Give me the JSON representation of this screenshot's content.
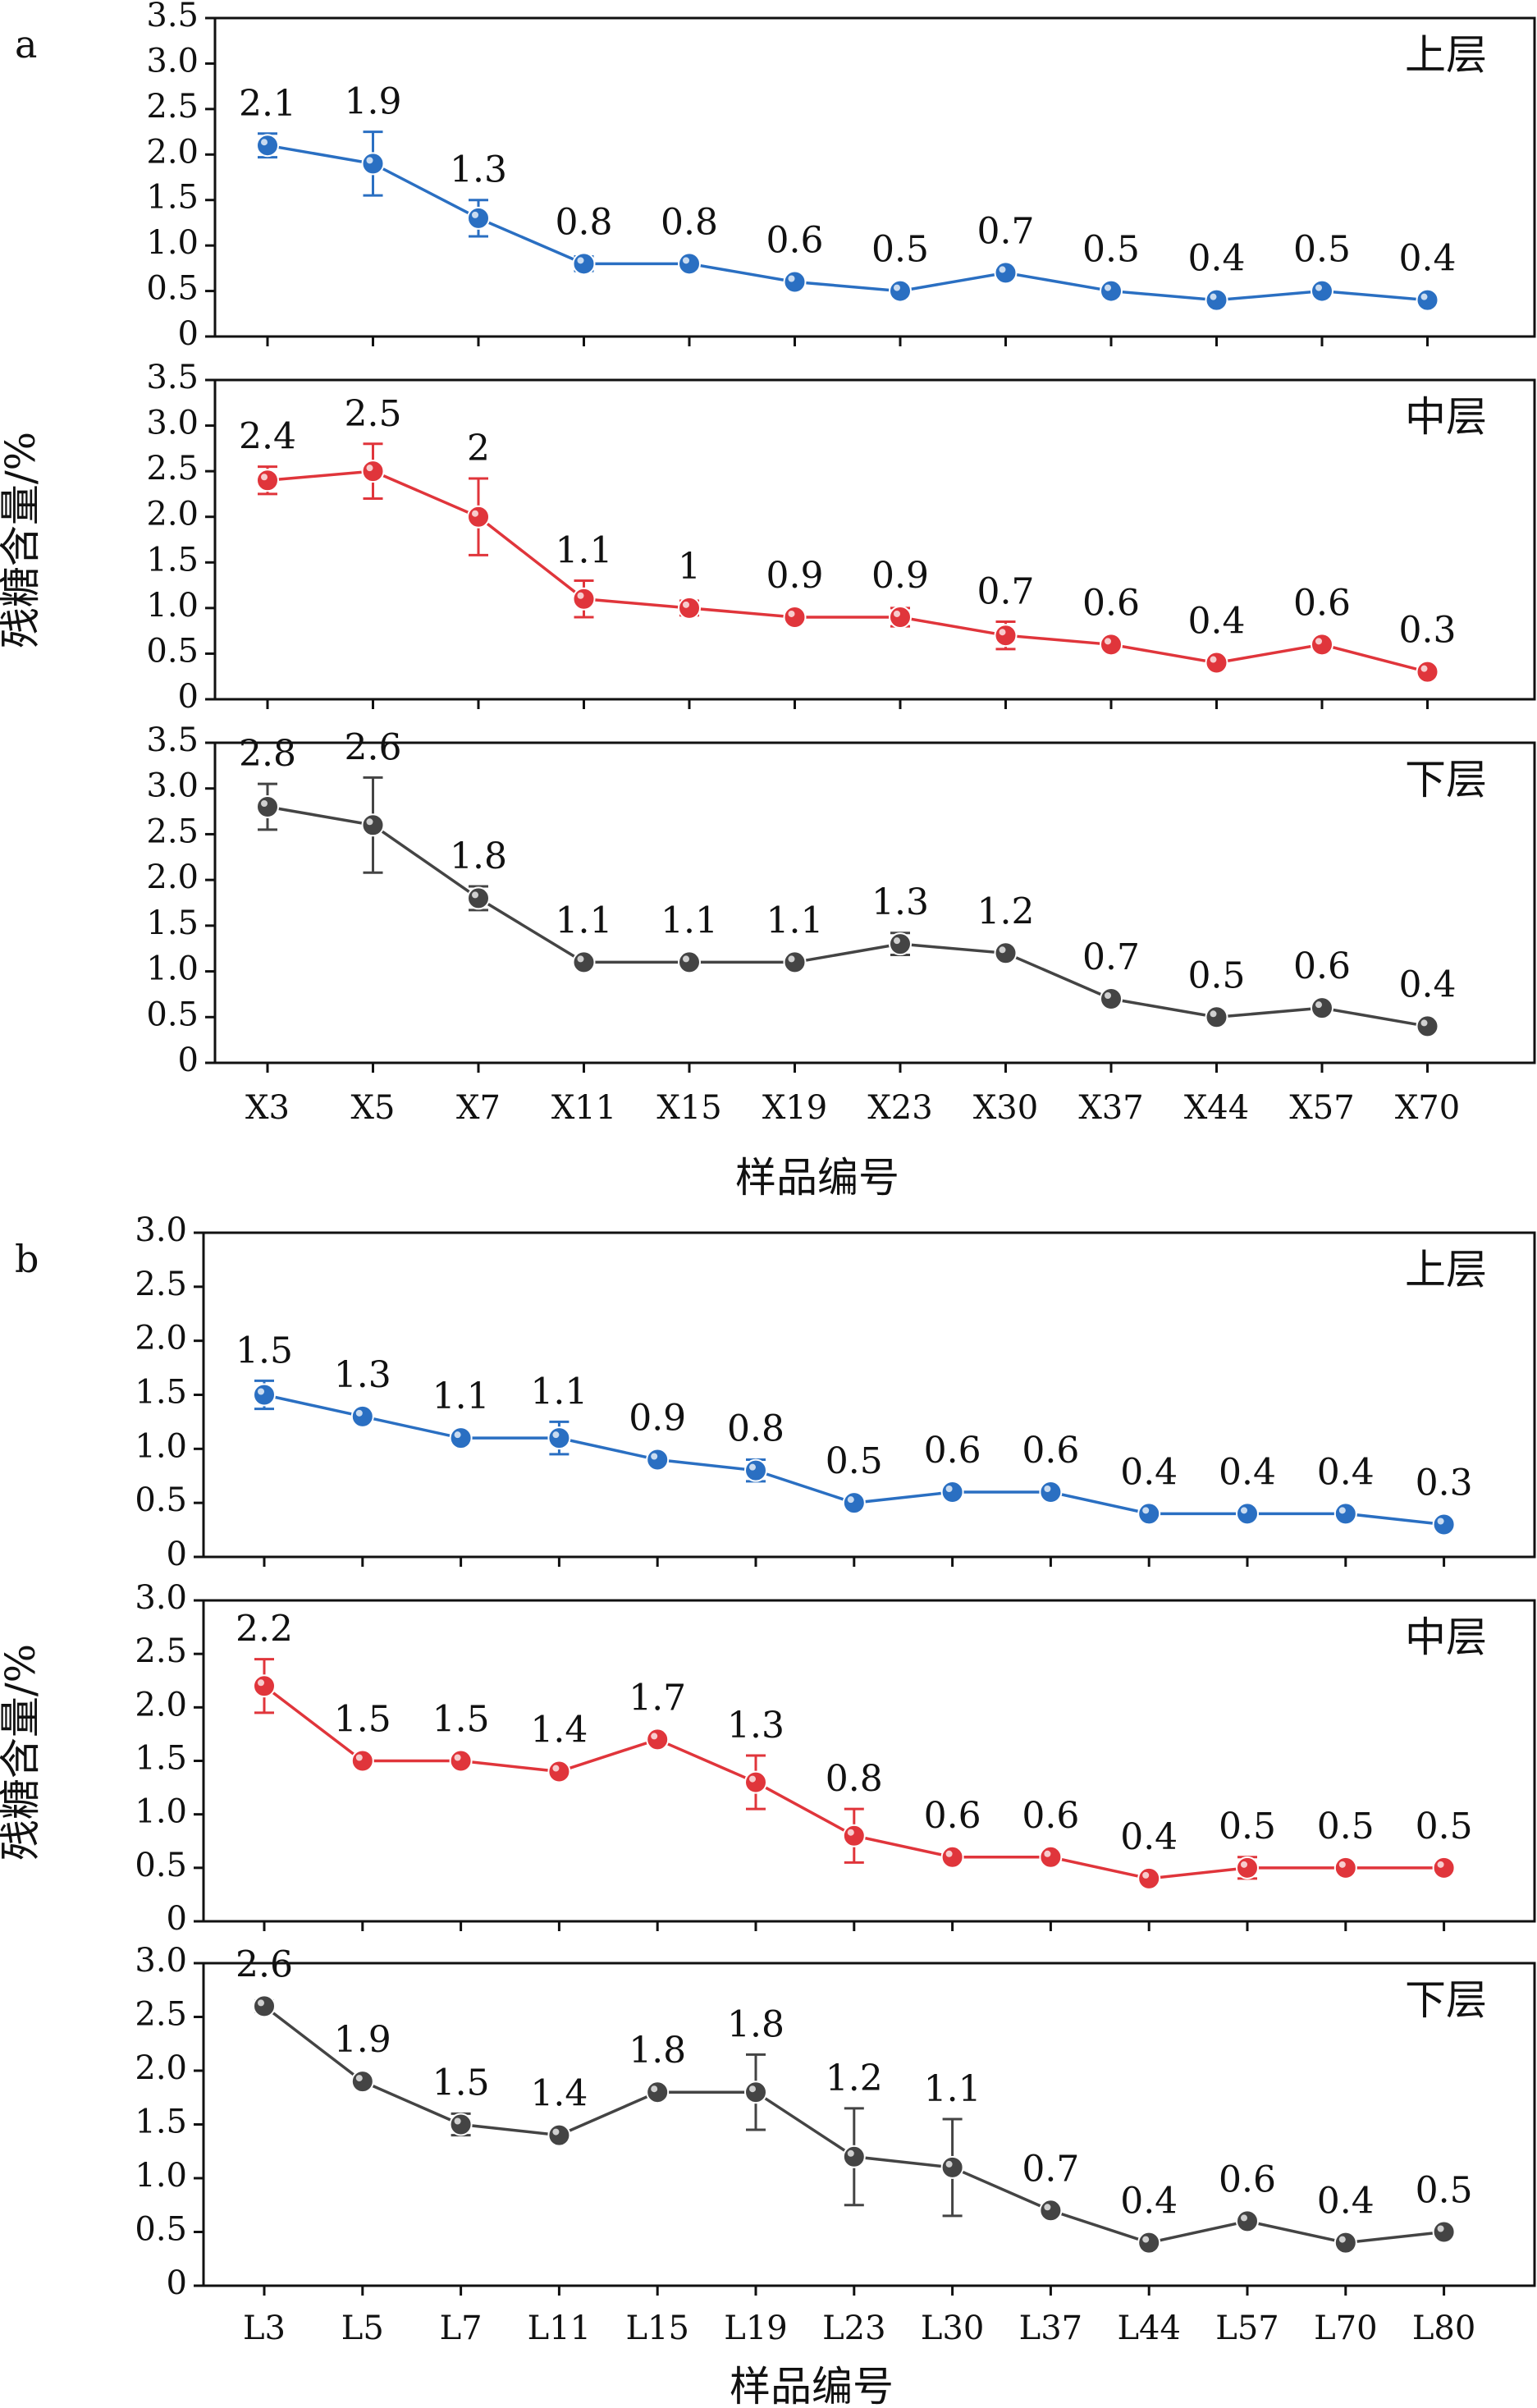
{
  "colors": {
    "upper": "#2a6fc2",
    "middle": "#e0353b",
    "lower": "#444444",
    "axis": "#111111"
  },
  "chart_data": [
    {
      "panel": "a",
      "type": "line",
      "xlabel": "样品编号",
      "ylabel": "残糖含量/%",
      "categories": [
        "X3",
        "X5",
        "X7",
        "X11",
        "X15",
        "X19",
        "X23",
        "X30",
        "X37",
        "X44",
        "X57",
        "X70"
      ],
      "ylim": [
        0,
        3.5
      ],
      "yticks": [
        "0",
        "0.5",
        "1.0",
        "1.5",
        "2.0",
        "2.5",
        "3.0",
        "3.5"
      ],
      "subplots": [
        {
          "layer": "上层",
          "color_key": "upper",
          "values": [
            2.1,
            1.9,
            1.3,
            0.8,
            0.8,
            0.6,
            0.5,
            0.7,
            0.5,
            0.4,
            0.5,
            0.4
          ],
          "labels": [
            "2.1",
            "1.9",
            "1.3",
            "0.8",
            "0.8",
            "0.6",
            "0.5",
            "0.7",
            "0.5",
            "0.4",
            "0.5",
            "0.4"
          ],
          "errors": [
            0.13,
            0.35,
            0.2,
            0.08,
            0.03,
            0.03,
            0.03,
            0.03,
            0.03,
            0.03,
            0.03,
            0.03
          ]
        },
        {
          "layer": "中层",
          "color_key": "middle",
          "values": [
            2.4,
            2.5,
            2.0,
            1.1,
            1.0,
            0.9,
            0.9,
            0.7,
            0.6,
            0.4,
            0.6,
            0.3
          ],
          "labels": [
            "2.4",
            "2.5",
            "2",
            "1.1",
            "1",
            "0.9",
            "0.9",
            "0.7",
            "0.6",
            "0.4",
            "0.6",
            "0.3"
          ],
          "errors": [
            0.15,
            0.3,
            0.42,
            0.2,
            0.08,
            0.03,
            0.1,
            0.15,
            0.03,
            0.03,
            0.03,
            0.03
          ]
        },
        {
          "layer": "下层",
          "color_key": "lower",
          "values": [
            2.8,
            2.6,
            1.8,
            1.1,
            1.1,
            1.1,
            1.3,
            1.2,
            0.7,
            0.5,
            0.6,
            0.4
          ],
          "labels": [
            "2.8",
            "2.6",
            "1.8",
            "1.1",
            "1.1",
            "1.1",
            "1.3",
            "1.2",
            "0.7",
            "0.5",
            "0.6",
            "0.4"
          ],
          "errors": [
            0.25,
            0.52,
            0.13,
            0.03,
            0.03,
            0.03,
            0.12,
            0.03,
            0.03,
            0.03,
            0.03,
            0.03
          ]
        }
      ]
    },
    {
      "panel": "b",
      "type": "line",
      "xlabel": "样品编号",
      "ylabel": "残糖含量/%",
      "categories": [
        "L3",
        "L5",
        "L7",
        "L11",
        "L15",
        "L19",
        "L23",
        "L30",
        "L37",
        "L44",
        "L57",
        "L70",
        "L80"
      ],
      "ylim": [
        0,
        3.0
      ],
      "yticks": [
        "0",
        "0.5",
        "1.0",
        "1.5",
        "2.0",
        "2.5",
        "3.0"
      ],
      "subplots": [
        {
          "layer": "上层",
          "color_key": "upper",
          "values": [
            1.5,
            1.3,
            1.1,
            1.1,
            0.9,
            0.8,
            0.5,
            0.6,
            0.6,
            0.4,
            0.4,
            0.4,
            0.3
          ],
          "labels": [
            "1.5",
            "1.3",
            "1.1",
            "1.1",
            "0.9",
            "0.8",
            "0.5",
            "0.6",
            "0.6",
            "0.4",
            "0.4",
            "0.4",
            "0.3"
          ],
          "errors": [
            0.13,
            0.03,
            0.03,
            0.15,
            0.03,
            0.1,
            0.03,
            0.03,
            0.03,
            0.03,
            0.03,
            0.03,
            0.03
          ]
        },
        {
          "layer": "中层",
          "color_key": "middle",
          "values": [
            2.2,
            1.5,
            1.5,
            1.4,
            1.7,
            1.3,
            0.8,
            0.6,
            0.6,
            0.4,
            0.5,
            0.5,
            0.5
          ],
          "labels": [
            "2.2",
            "1.5",
            "1.5",
            "1.4",
            "1.7",
            "1.3",
            "0.8",
            "0.6",
            "0.6",
            "0.4",
            "0.5",
            "0.5",
            "0.5"
          ],
          "errors": [
            0.25,
            0.03,
            0.03,
            0.03,
            0.03,
            0.25,
            0.25,
            0.03,
            0.03,
            0.03,
            0.1,
            0.03,
            0.03
          ]
        },
        {
          "layer": "下层",
          "color_key": "lower",
          "values": [
            2.6,
            1.9,
            1.5,
            1.4,
            1.8,
            1.8,
            1.2,
            1.1,
            0.7,
            0.4,
            0.6,
            0.4,
            0.5
          ],
          "labels": [
            "2.6",
            "1.9",
            "1.5",
            "1.4",
            "1.8",
            "1.8",
            "1.2",
            "1.1",
            "0.7",
            "0.4",
            "0.6",
            "0.4",
            "0.5"
          ],
          "errors": [
            0.05,
            0.03,
            0.1,
            0.03,
            0.03,
            0.35,
            0.45,
            0.45,
            0.03,
            0.03,
            0.03,
            0.03,
            0.03
          ]
        }
      ]
    }
  ]
}
